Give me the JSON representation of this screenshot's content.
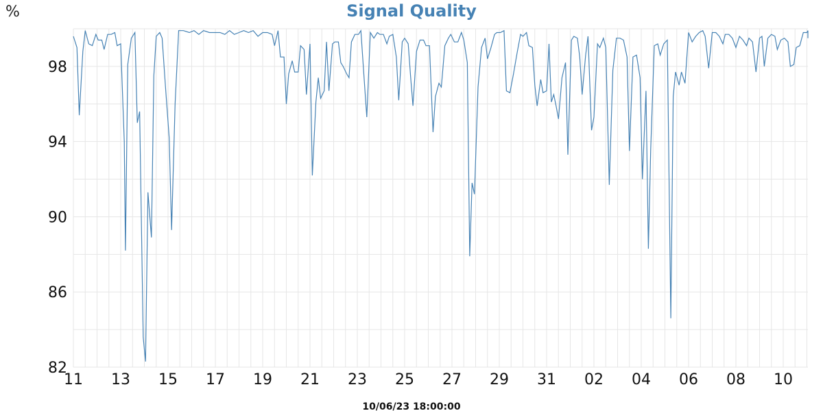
{
  "chart_data": {
    "type": "line",
    "title": "Signal Quality",
    "ylabel": "%",
    "xlabel": "10/06/23 18:00:00",
    "ylim": [
      82,
      100
    ],
    "xlim": [
      0,
      62.3
    ],
    "y_ticks": [
      82,
      86,
      90,
      94,
      98
    ],
    "x_ticks": [
      {
        "x": 0,
        "label": "11"
      },
      {
        "x": 4,
        "label": "13"
      },
      {
        "x": 8,
        "label": "15"
      },
      {
        "x": 12,
        "label": "17"
      },
      {
        "x": 16,
        "label": "19"
      },
      {
        "x": 20,
        "label": "21"
      },
      {
        "x": 24,
        "label": "23"
      },
      {
        "x": 28,
        "label": "25"
      },
      {
        "x": 32,
        "label": "27"
      },
      {
        "x": 36,
        "label": "29"
      },
      {
        "x": 40,
        "label": "31"
      },
      {
        "x": 44,
        "label": "02"
      },
      {
        "x": 48,
        "label": "04"
      },
      {
        "x": 52,
        "label": "06"
      },
      {
        "x": 56,
        "label": "08"
      },
      {
        "x": 60,
        "label": "10"
      }
    ],
    "grid": true,
    "series": [
      {
        "color": "#4682b4",
        "points": [
          [
            0.0,
            99.6
          ],
          [
            0.3,
            99.0
          ],
          [
            0.5,
            95.4
          ],
          [
            0.8,
            98.8
          ],
          [
            1.0,
            99.9
          ],
          [
            1.3,
            99.2
          ],
          [
            1.6,
            99.1
          ],
          [
            1.9,
            99.7
          ],
          [
            2.1,
            99.4
          ],
          [
            2.4,
            99.4
          ],
          [
            2.6,
            98.9
          ],
          [
            2.9,
            99.7
          ],
          [
            3.2,
            99.7
          ],
          [
            3.5,
            99.8
          ],
          [
            3.7,
            99.1
          ],
          [
            4.0,
            99.2
          ],
          [
            4.3,
            94.0
          ],
          [
            4.4,
            88.2
          ],
          [
            4.6,
            98.1
          ],
          [
            4.9,
            99.5
          ],
          [
            5.2,
            99.8
          ],
          [
            5.4,
            95.0
          ],
          [
            5.6,
            95.6
          ],
          [
            5.9,
            83.6
          ],
          [
            6.1,
            82.3
          ],
          [
            6.3,
            91.3
          ],
          [
            6.6,
            88.9
          ],
          [
            6.8,
            97.5
          ],
          [
            7.0,
            99.6
          ],
          [
            7.3,
            99.8
          ],
          [
            7.5,
            99.5
          ],
          [
            7.8,
            96.8
          ],
          [
            8.1,
            94.2
          ],
          [
            8.3,
            89.3
          ],
          [
            8.6,
            96.0
          ],
          [
            8.9,
            99.9
          ],
          [
            9.3,
            99.9
          ],
          [
            9.8,
            99.8
          ],
          [
            10.2,
            99.9
          ],
          [
            10.6,
            99.7
          ],
          [
            11.0,
            99.9
          ],
          [
            11.5,
            99.8
          ],
          [
            12.0,
            99.8
          ],
          [
            12.4,
            99.8
          ],
          [
            12.8,
            99.7
          ],
          [
            13.2,
            99.9
          ],
          [
            13.6,
            99.7
          ],
          [
            14.0,
            99.8
          ],
          [
            14.4,
            99.9
          ],
          [
            14.8,
            99.8
          ],
          [
            15.2,
            99.9
          ],
          [
            15.6,
            99.6
          ],
          [
            16.0,
            99.8
          ],
          [
            16.4,
            99.8
          ],
          [
            16.8,
            99.7
          ],
          [
            17.0,
            99.1
          ],
          [
            17.3,
            99.9
          ],
          [
            17.5,
            98.5
          ],
          [
            17.8,
            98.5
          ],
          [
            18.0,
            96.0
          ],
          [
            18.2,
            97.6
          ],
          [
            18.5,
            98.3
          ],
          [
            18.7,
            97.7
          ],
          [
            19.0,
            97.7
          ],
          [
            19.2,
            99.1
          ],
          [
            19.5,
            98.9
          ],
          [
            19.7,
            96.5
          ],
          [
            20.0,
            99.2
          ],
          [
            20.2,
            92.2
          ],
          [
            20.5,
            96.1
          ],
          [
            20.7,
            97.4
          ],
          [
            20.9,
            96.3
          ],
          [
            21.2,
            96.7
          ],
          [
            21.4,
            99.3
          ],
          [
            21.6,
            96.7
          ],
          [
            21.9,
            99.2
          ],
          [
            22.1,
            99.3
          ],
          [
            22.4,
            99.3
          ],
          [
            22.6,
            98.2
          ],
          [
            22.8,
            98.0
          ],
          [
            23.1,
            97.6
          ],
          [
            23.3,
            97.4
          ],
          [
            23.5,
            99.3
          ],
          [
            23.8,
            99.7
          ],
          [
            24.1,
            99.7
          ],
          [
            24.3,
            99.9
          ],
          [
            24.6,
            97.1
          ],
          [
            24.8,
            95.3
          ],
          [
            25.1,
            99.8
          ],
          [
            25.4,
            99.5
          ],
          [
            25.7,
            99.8
          ],
          [
            25.9,
            99.7
          ],
          [
            26.2,
            99.7
          ],
          [
            26.5,
            99.2
          ],
          [
            26.7,
            99.6
          ],
          [
            27.0,
            99.7
          ],
          [
            27.3,
            98.5
          ],
          [
            27.5,
            96.2
          ],
          [
            27.8,
            99.3
          ],
          [
            28.0,
            99.5
          ],
          [
            28.3,
            99.2
          ],
          [
            28.5,
            97.5
          ],
          [
            28.7,
            95.9
          ],
          [
            29.0,
            98.8
          ],
          [
            29.3,
            99.4
          ],
          [
            29.6,
            99.4
          ],
          [
            29.8,
            99.1
          ],
          [
            30.1,
            99.1
          ],
          [
            30.4,
            94.5
          ],
          [
            30.6,
            96.4
          ],
          [
            30.9,
            97.1
          ],
          [
            31.1,
            96.9
          ],
          [
            31.4,
            99.1
          ],
          [
            31.7,
            99.5
          ],
          [
            31.9,
            99.7
          ],
          [
            32.2,
            99.3
          ],
          [
            32.5,
            99.3
          ],
          [
            32.8,
            99.8
          ],
          [
            33.0,
            99.4
          ],
          [
            33.3,
            98.2
          ],
          [
            33.5,
            87.9
          ],
          [
            33.7,
            91.8
          ],
          [
            33.9,
            91.2
          ],
          [
            34.2,
            96.9
          ],
          [
            34.5,
            99.0
          ],
          [
            34.8,
            99.5
          ],
          [
            35.0,
            98.4
          ],
          [
            35.3,
            99.0
          ],
          [
            35.6,
            99.7
          ],
          [
            35.8,
            99.8
          ],
          [
            36.1,
            99.8
          ],
          [
            36.4,
            99.9
          ],
          [
            36.6,
            96.7
          ],
          [
            36.9,
            96.6
          ],
          [
            37.2,
            97.6
          ],
          [
            37.5,
            98.7
          ],
          [
            37.8,
            99.7
          ],
          [
            38.0,
            99.6
          ],
          [
            38.3,
            99.8
          ],
          [
            38.5,
            99.1
          ],
          [
            38.8,
            99.0
          ],
          [
            39.0,
            97.0
          ],
          [
            39.2,
            95.9
          ],
          [
            39.5,
            97.3
          ],
          [
            39.7,
            96.6
          ],
          [
            40.0,
            96.7
          ],
          [
            40.2,
            99.2
          ],
          [
            40.4,
            96.1
          ],
          [
            40.6,
            96.5
          ],
          [
            40.8,
            95.9
          ],
          [
            41.0,
            95.2
          ],
          [
            41.3,
            97.4
          ],
          [
            41.6,
            98.2
          ],
          [
            41.8,
            93.3
          ],
          [
            42.1,
            99.4
          ],
          [
            42.3,
            99.6
          ],
          [
            42.6,
            99.5
          ],
          [
            42.8,
            98.5
          ],
          [
            43.0,
            96.5
          ],
          [
            43.3,
            98.6
          ],
          [
            43.5,
            99.6
          ],
          [
            43.8,
            94.6
          ],
          [
            44.0,
            95.3
          ],
          [
            44.3,
            99.2
          ],
          [
            44.5,
            99.0
          ],
          [
            44.8,
            99.5
          ],
          [
            45.0,
            99.0
          ],
          [
            45.3,
            91.7
          ],
          [
            45.6,
            97.8
          ],
          [
            45.9,
            99.5
          ],
          [
            46.2,
            99.5
          ],
          [
            46.5,
            99.4
          ],
          [
            46.8,
            98.5
          ],
          [
            47.0,
            93.5
          ],
          [
            47.3,
            98.5
          ],
          [
            47.6,
            98.6
          ],
          [
            47.9,
            97.4
          ],
          [
            48.1,
            92.0
          ],
          [
            48.4,
            96.7
          ],
          [
            48.6,
            88.3
          ],
          [
            48.8,
            93.6
          ],
          [
            49.1,
            99.1
          ],
          [
            49.4,
            99.2
          ],
          [
            49.6,
            98.6
          ],
          [
            49.9,
            99.2
          ],
          [
            50.2,
            99.4
          ],
          [
            50.5,
            84.6
          ],
          [
            50.7,
            96.4
          ],
          [
            50.9,
            97.7
          ],
          [
            51.2,
            97.0
          ],
          [
            51.4,
            97.7
          ],
          [
            51.7,
            97.1
          ],
          [
            52.0,
            99.8
          ],
          [
            52.3,
            99.3
          ],
          [
            52.6,
            99.6
          ],
          [
            52.9,
            99.8
          ],
          [
            53.2,
            99.9
          ],
          [
            53.4,
            99.6
          ],
          [
            53.7,
            97.9
          ],
          [
            54.0,
            99.8
          ],
          [
            54.3,
            99.8
          ],
          [
            54.6,
            99.6
          ],
          [
            54.9,
            99.2
          ],
          [
            55.1,
            99.7
          ],
          [
            55.4,
            99.7
          ],
          [
            55.7,
            99.5
          ],
          [
            56.0,
            99.0
          ],
          [
            56.3,
            99.6
          ],
          [
            56.6,
            99.4
          ],
          [
            56.9,
            99.1
          ],
          [
            57.1,
            99.5
          ],
          [
            57.4,
            99.3
          ],
          [
            57.7,
            97.7
          ],
          [
            58.0,
            99.5
          ],
          [
            58.2,
            99.6
          ],
          [
            58.4,
            98.0
          ],
          [
            58.7,
            99.5
          ],
          [
            59.0,
            99.7
          ],
          [
            59.3,
            99.6
          ],
          [
            59.5,
            98.9
          ],
          [
            59.8,
            99.4
          ],
          [
            60.1,
            99.5
          ],
          [
            60.4,
            99.3
          ],
          [
            60.6,
            98.0
          ],
          [
            60.9,
            98.1
          ],
          [
            61.1,
            99.0
          ],
          [
            61.4,
            99.1
          ],
          [
            61.7,
            99.8
          ],
          [
            62.0,
            99.8
          ],
          [
            62.3,
            99.9
          ],
          [
            62.6,
            99.8
          ],
          [
            62.9,
            99.5
          ],
          [
            63.1,
            99.8
          ],
          [
            63.4,
            99.8
          ],
          [
            63.6,
            99.8
          ]
        ]
      }
    ]
  }
}
